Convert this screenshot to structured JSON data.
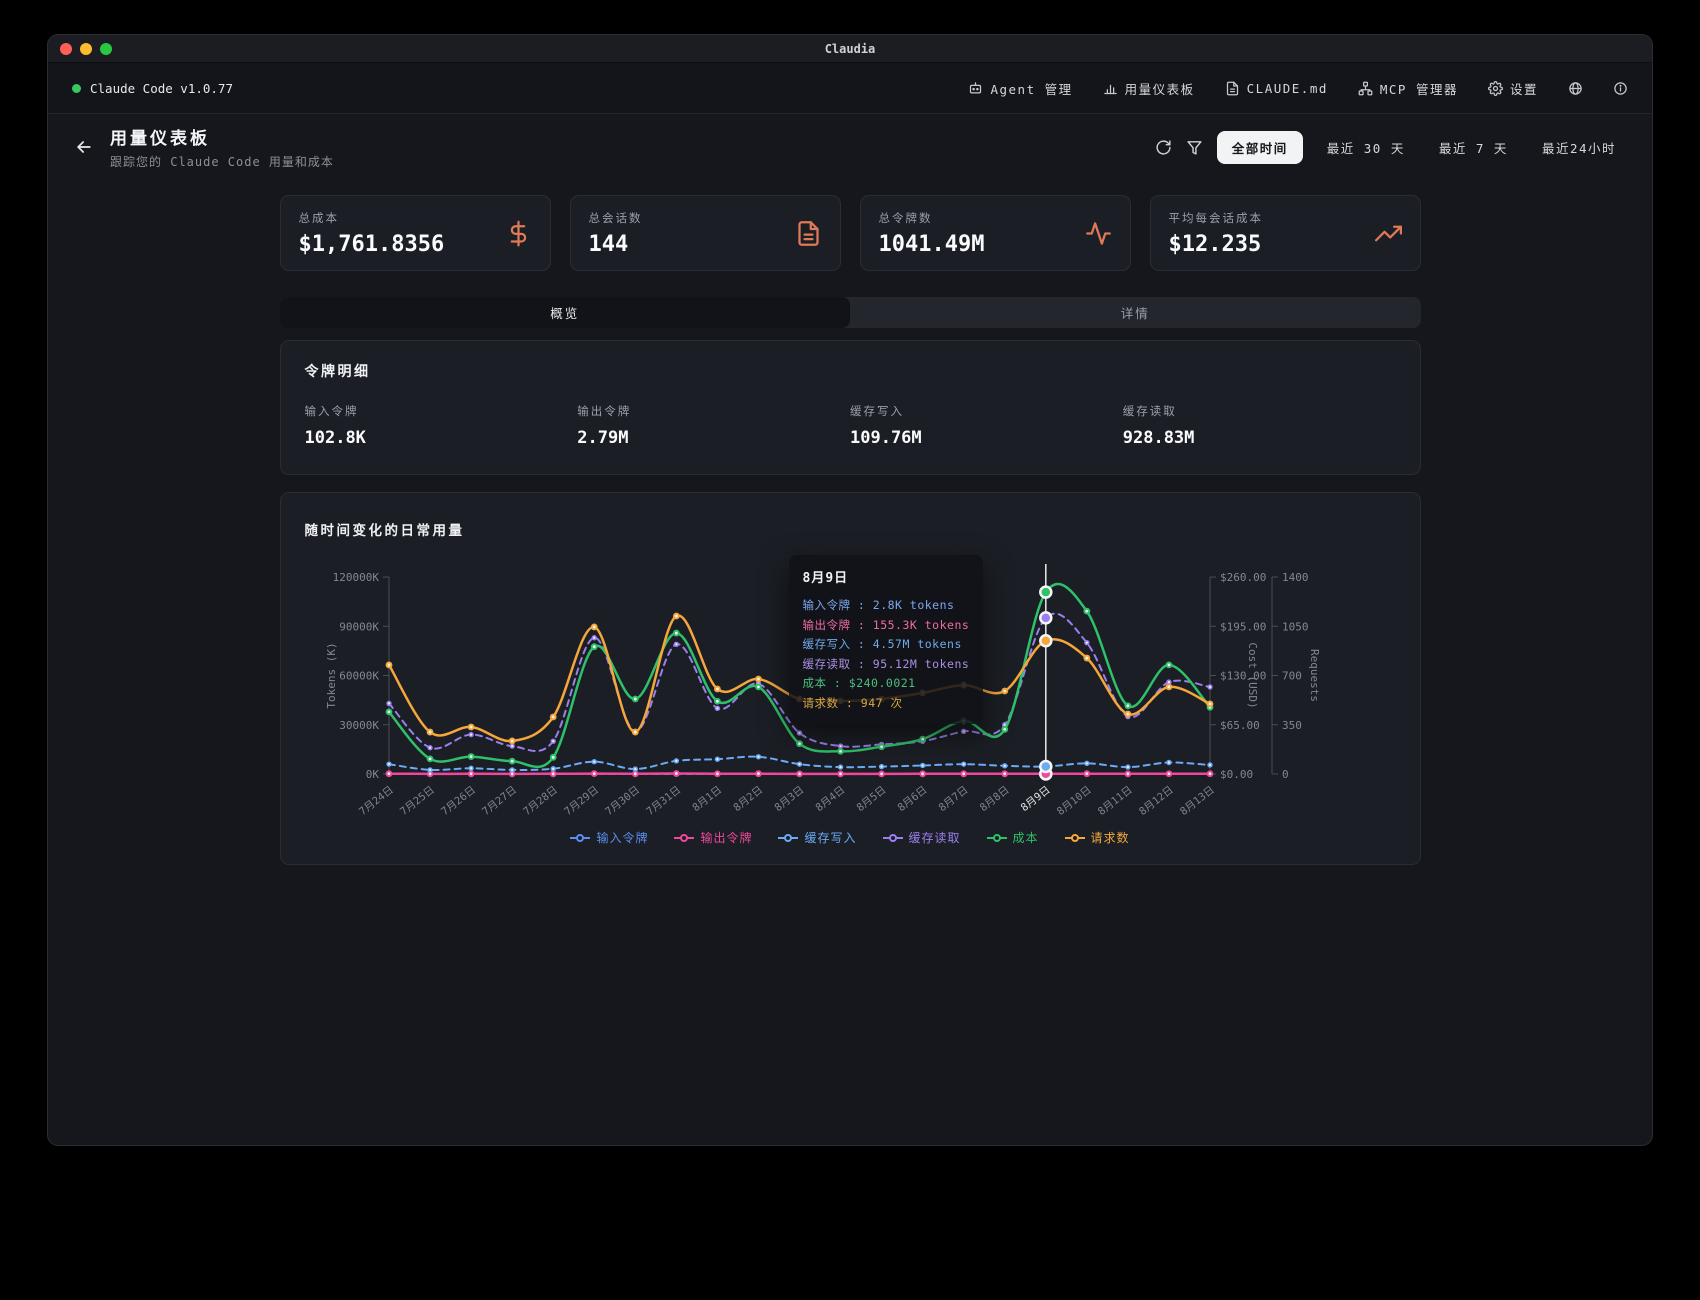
{
  "window": {
    "title": "Claudia"
  },
  "topbar": {
    "app_version": "Claude Code v1.0.77",
    "menu": [
      {
        "icon": "bot-icon",
        "label": "Agent 管理"
      },
      {
        "icon": "bar-chart-icon",
        "label": "用量仪表板"
      },
      {
        "icon": "file-icon",
        "label": "CLAUDE.md"
      },
      {
        "icon": "network-icon",
        "label": "MCP 管理器"
      },
      {
        "icon": "gear-icon",
        "label": "设置"
      }
    ]
  },
  "page_header": {
    "title": "用量仪表板",
    "subtitle": "跟踪您的 Claude Code 用量和成本",
    "filters": [
      {
        "label": "全部时间",
        "active": true
      },
      {
        "label": "最近 30 天",
        "active": false
      },
      {
        "label": "最近 7 天",
        "active": false
      },
      {
        "label": "最近24小时",
        "active": false
      }
    ]
  },
  "stats": [
    {
      "label": "总成本",
      "value": "$1,761.8356",
      "icon": "dollar-icon"
    },
    {
      "label": "总会话数",
      "value": "144",
      "icon": "document-icon"
    },
    {
      "label": "总令牌数",
      "value": "1041.49M",
      "icon": "activity-icon"
    },
    {
      "label": "平均每会话成本",
      "value": "$12.235",
      "icon": "trending-up-icon"
    }
  ],
  "tabs": [
    {
      "label": "概览",
      "active": true
    },
    {
      "label": "详情",
      "active": false
    }
  ],
  "token_breakdown": {
    "title": "令牌明细",
    "items": [
      {
        "label": "输入令牌",
        "value": "102.8K"
      },
      {
        "label": "输出令牌",
        "value": "2.79M"
      },
      {
        "label": "缓存写入",
        "value": "109.76M"
      },
      {
        "label": "缓存读取",
        "value": "928.83M"
      }
    ]
  },
  "chart": {
    "title": "随时间变化的日常用量",
    "tooltip": {
      "title": "8月9日",
      "sep": " : ",
      "rows": [
        {
          "label": "输入令牌",
          "value": "2.8K tokens",
          "color": "#7da6f0"
        },
        {
          "label": "输出令牌",
          "value": "155.3K tokens",
          "color": "#f06ba0"
        },
        {
          "label": "缓存写入",
          "value": "4.57M tokens",
          "color": "#6fa9e8"
        },
        {
          "label": "缓存读取",
          "value": "95.12M tokens",
          "color": "#a98fe0"
        },
        {
          "label": "成本",
          "value": "$240.0021",
          "color": "#4fbf7e"
        },
        {
          "label": "请求数",
          "value": "947 次",
          "color": "#d9a845"
        }
      ]
    }
  },
  "chart_data": {
    "type": "line",
    "title": "随时间变化的日常用量",
    "x": [
      "7月24日",
      "7月25日",
      "7月26日",
      "7月27日",
      "7月28日",
      "7月29日",
      "7月30日",
      "7月31日",
      "8月1日",
      "8月2日",
      "8月3日",
      "8月4日",
      "8月5日",
      "8月6日",
      "8月7日",
      "8月8日",
      "8月9日",
      "8月10日",
      "8月11日",
      "8月12日",
      "8月13日"
    ],
    "hover_index": 16,
    "y_axes": [
      {
        "label": "Tokens (K)",
        "side": "left",
        "range": [
          0,
          120000
        ],
        "ticks": [
          "0K",
          "30000K",
          "60000K",
          "90000K",
          "120000K"
        ]
      },
      {
        "label": "Cost (USD)",
        "side": "right",
        "range": [
          0,
          260
        ],
        "ticks": [
          "$0.00",
          "$65.00",
          "$130.00",
          "$195.00",
          "$260.00"
        ]
      },
      {
        "label": "Requests",
        "side": "right",
        "range": [
          0,
          1400
        ],
        "ticks": [
          "0",
          "350",
          "700",
          "1050",
          "1400"
        ]
      }
    ],
    "series": [
      {
        "name": "输入令牌",
        "axis": 0,
        "color": "#5b8ff0",
        "dash": true,
        "values": [
          6,
          3,
          4,
          3,
          4,
          8,
          3,
          9,
          5,
          6,
          3,
          3,
          3,
          4,
          5,
          4,
          2.8,
          6,
          4,
          7,
          5
        ]
      },
      {
        "name": "输出令牌",
        "axis": 0,
        "color": "#f0479c",
        "dash": false,
        "values": [
          180,
          90,
          120,
          80,
          110,
          250,
          100,
          280,
          150,
          200,
          90,
          80,
          90,
          110,
          130,
          120,
          155.3,
          200,
          110,
          170,
          140
        ]
      },
      {
        "name": "缓存写入",
        "axis": 0,
        "color": "#6baaf5",
        "dash": true,
        "values": [
          6000,
          2500,
          3500,
          2500,
          3200,
          7500,
          3000,
          8000,
          9000,
          10500,
          6000,
          4200,
          4500,
          5200,
          6000,
          5000,
          4570,
          6500,
          4200,
          7000,
          5500
        ]
      },
      {
        "name": "缓存读取",
        "axis": 0,
        "color": "#9b7ff0",
        "dash": true,
        "values": [
          43000,
          16000,
          24000,
          17000,
          20000,
          83000,
          26000,
          79000,
          40000,
          55000,
          25000,
          17000,
          18000,
          20000,
          26000,
          30000,
          95120,
          80000,
          35000,
          56000,
          53000
        ]
      },
      {
        "name": "成本",
        "axis": 1,
        "color": "#2fc06a",
        "dash": false,
        "values": [
          82,
          20,
          23,
          17,
          22,
          168,
          99,
          186,
          96,
          115,
          40,
          30,
          36,
          46,
          70,
          59,
          240.0021,
          215,
          90,
          144,
          88
        ]
      },
      {
        "name": "请求数",
        "axis": 2,
        "color": "#f5a73b",
        "dash": false,
        "values": [
          775,
          298,
          334,
          235,
          405,
          1045,
          298,
          1123,
          604,
          675,
          533,
          519,
          533,
          576,
          632,
          590,
          947,
          824,
          426,
          619,
          498
        ]
      }
    ]
  }
}
